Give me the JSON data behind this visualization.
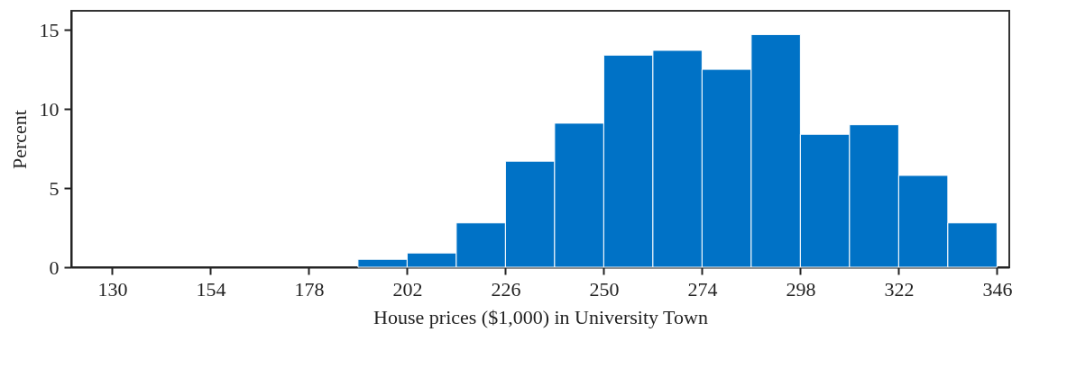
{
  "chart_data": {
    "type": "histogram",
    "xlabel": "House prices ($1,000) in University Town",
    "ylabel": "Percent",
    "bins": [
      190,
      202,
      214,
      226,
      238,
      250,
      262,
      274,
      286,
      298,
      310,
      322,
      334,
      346
    ],
    "values": [
      0.5,
      0.9,
      2.8,
      6.7,
      9.1,
      13.4,
      13.7,
      12.5,
      14.7,
      8.4,
      9.0,
      5.8,
      2.8
    ],
    "color": "#0072c6",
    "xlim": [
      120,
      349
    ],
    "xticks": [
      130,
      154,
      178,
      202,
      226,
      250,
      274,
      298,
      322,
      346
    ],
    "ylim": [
      0,
      16.2
    ],
    "yticks": [
      0,
      5,
      10,
      15
    ],
    "grid": false
  }
}
